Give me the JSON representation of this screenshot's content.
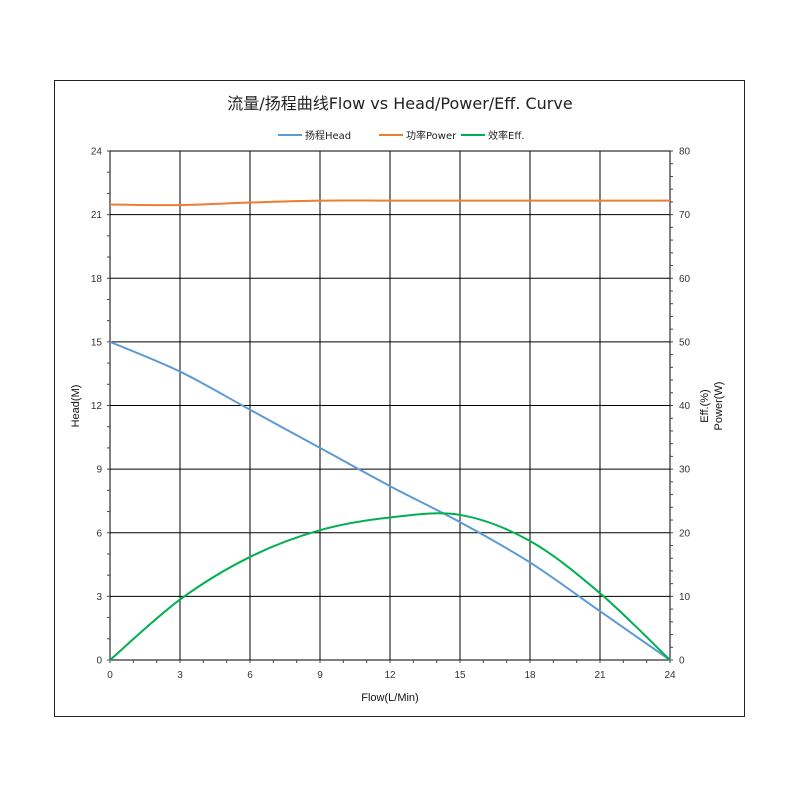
{
  "chart_data": {
    "type": "line",
    "title": "流量/扬程曲线Flow vs Head/Power/Eff. Curve",
    "xlabel": "Flow(L/Min)",
    "ylabel_left": "Head(M)",
    "ylabel_right": [
      "Eff.(%)",
      "Power(W)"
    ],
    "xlim": [
      0,
      24
    ],
    "ylim_left": [
      0,
      24
    ],
    "ylim_right": [
      0,
      80
    ],
    "x_ticks": [
      "0",
      "3",
      "6",
      "9",
      "12",
      "15",
      "18",
      "21",
      "24"
    ],
    "y_left_ticks": [
      "0",
      "3",
      "6",
      "9",
      "12",
      "15",
      "18",
      "21",
      "24"
    ],
    "y_right_ticks": [
      "0",
      "10",
      "20",
      "30",
      "40",
      "50",
      "60",
      "70",
      "80"
    ],
    "grid": true,
    "legend_position": "top",
    "series": [
      {
        "name": "扬程Head",
        "axis": "left",
        "color": "#5b9bd5",
        "x": [
          0,
          3,
          6,
          9,
          12,
          15,
          18,
          21,
          24
        ],
        "y": [
          15,
          13.6,
          11.8,
          10.0,
          8.2,
          6.5,
          4.6,
          2.3,
          0
        ]
      },
      {
        "name": "功率Power",
        "axis": "right",
        "color": "#ed7d31",
        "x": [
          0,
          3,
          6,
          9,
          12,
          15,
          18,
          21,
          24
        ],
        "y": [
          71.6,
          71.5,
          71.9,
          72.2,
          72.2,
          72.2,
          72.2,
          72.2,
          72.2
        ]
      },
      {
        "name": "效率Eff.",
        "axis": "right",
        "color": "#00b050",
        "x": [
          0,
          3,
          6,
          9,
          12,
          15,
          18,
          21,
          24
        ],
        "y": [
          0,
          9.5,
          16.2,
          20.4,
          22.4,
          22.8,
          18.7,
          10.5,
          0
        ]
      }
    ]
  }
}
